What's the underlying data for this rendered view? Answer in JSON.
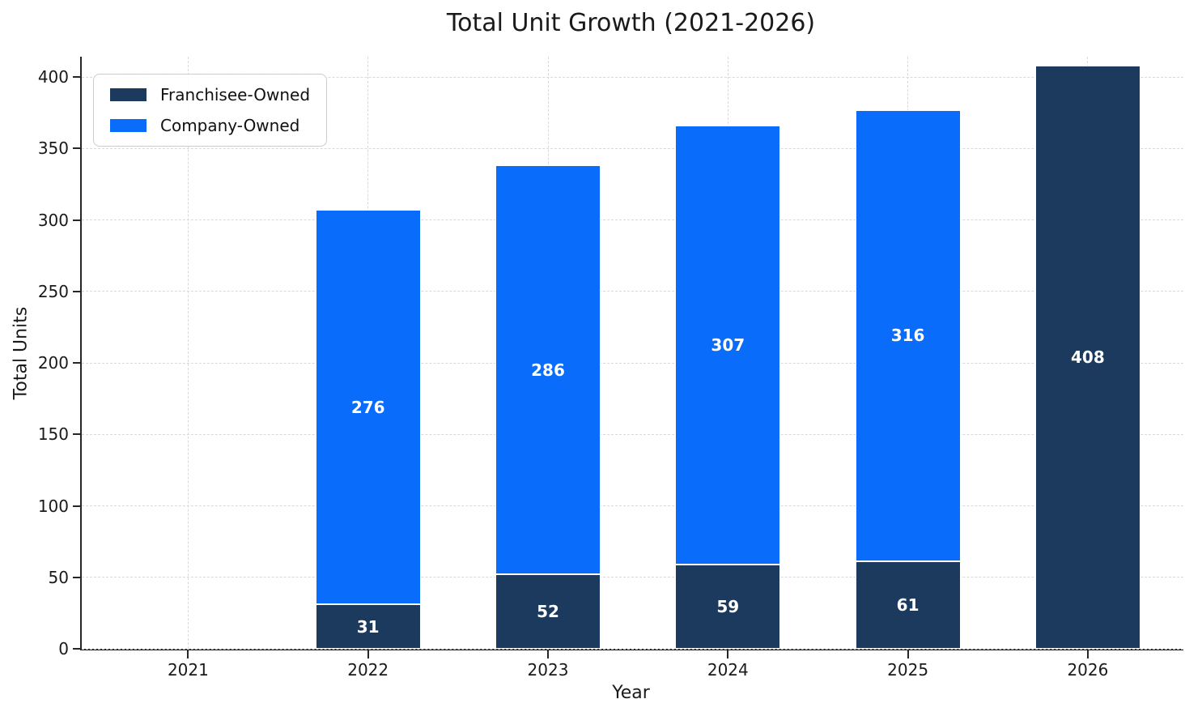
{
  "title": "Total Unit Growth (2021-2026)",
  "chart_data": {
    "type": "bar",
    "stacked": true,
    "title": "Total Unit Growth (2021-2026)",
    "xlabel": "Year",
    "ylabel": "Total Units",
    "categories": [
      "2021",
      "2022",
      "2023",
      "2024",
      "2025",
      "2026"
    ],
    "series": [
      {
        "name": "Franchisee-Owned",
        "color": "#1c3a5e",
        "values": [
          0,
          31,
          52,
          59,
          61,
          408
        ]
      },
      {
        "name": "Company-Owned",
        "color": "#0a6cfb",
        "values": [
          0,
          276,
          286,
          307,
          316,
          0
        ]
      }
    ],
    "bar_labels_shown": [
      [
        31,
        52,
        59,
        61,
        408
      ],
      [
        276,
        286,
        307,
        316
      ]
    ],
    "yticks": [
      0,
      50,
      100,
      150,
      200,
      250,
      300,
      350,
      400
    ],
    "ylim": [
      0,
      414
    ],
    "grid": true,
    "legend_position": "upper left",
    "colors": {
      "grid": "#d9d9d9",
      "axis": "#262626",
      "bar_value_text": "#ffffff",
      "title_text": "#1a1a1a"
    }
  }
}
